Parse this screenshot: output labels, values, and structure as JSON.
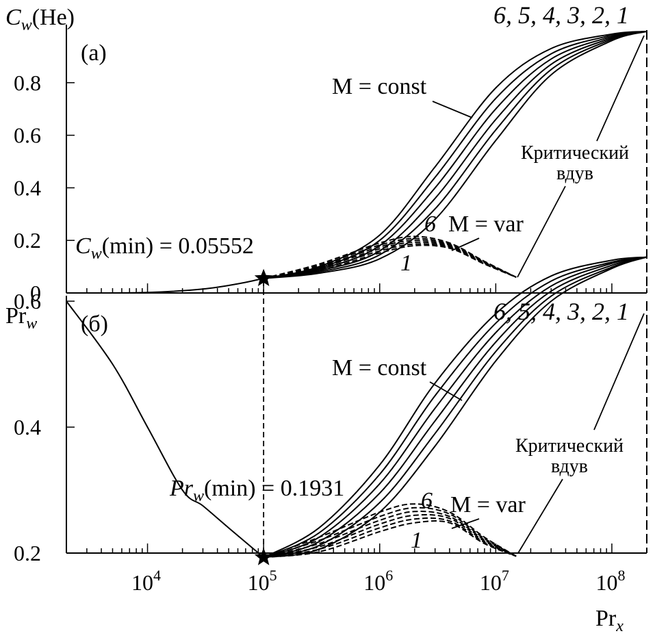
{
  "chart_data": [
    {
      "panel_label": "(a)",
      "type": "line",
      "ylabel_main": "C",
      "ylabel_sub": "w",
      "ylabel_suffix": "(He)",
      "xscale": "log",
      "xlim": [
        2000,
        200000000
      ],
      "ylim": [
        0,
        1.0
      ],
      "yticks": [
        "0",
        "0.2",
        "0.4",
        "0.6",
        "0.8"
      ],
      "ytick_values": [
        0,
        0.2,
        0.4,
        0.6,
        0.8
      ],
      "curve_order_label": "6, 5, 4, 3, 2, 1",
      "const_label": "M = const",
      "var_label": "M = var",
      "var_top_label": "6",
      "var_bottom_label": "1",
      "critical_label_line1": "Критический",
      "critical_label_line2": "вдув",
      "min_label_main": "C",
      "min_label_sub": "w",
      "min_label_suffix": "(min) = 0.05552",
      "min_point": {
        "x": 100000,
        "y": 0.05552
      },
      "base_curve": {
        "x": [
          2000,
          10000,
          30000,
          60000,
          100000
        ],
        "y": [
          0.0,
          0.002,
          0.015,
          0.035,
          0.05552
        ]
      },
      "const_series": [
        {
          "name": "6",
          "x": [
            100000,
            300000,
            1000000,
            3000000,
            10000000,
            30000000,
            100000000,
            200000000
          ],
          "y": [
            0.0555,
            0.1,
            0.22,
            0.48,
            0.78,
            0.93,
            0.985,
            0.995
          ]
        },
        {
          "name": "5",
          "x": [
            100000,
            300000,
            1000000,
            3000000,
            10000000,
            30000000,
            100000000,
            200000000
          ],
          "y": [
            0.0555,
            0.095,
            0.2,
            0.44,
            0.74,
            0.91,
            0.98,
            0.995
          ]
        },
        {
          "name": "4",
          "x": [
            100000,
            300000,
            1000000,
            3000000,
            10000000,
            30000000,
            100000000,
            200000000
          ],
          "y": [
            0.0555,
            0.09,
            0.18,
            0.4,
            0.7,
            0.89,
            0.975,
            0.995
          ]
        },
        {
          "name": "3",
          "x": [
            100000,
            300000,
            1000000,
            3000000,
            10000000,
            30000000,
            100000000,
            200000000
          ],
          "y": [
            0.0555,
            0.085,
            0.16,
            0.36,
            0.66,
            0.87,
            0.97,
            0.995
          ]
        },
        {
          "name": "2",
          "x": [
            100000,
            300000,
            1000000,
            3000000,
            10000000,
            30000000,
            100000000,
            200000000
          ],
          "y": [
            0.0555,
            0.08,
            0.145,
            0.32,
            0.62,
            0.85,
            0.965,
            0.995
          ]
        },
        {
          "name": "1",
          "x": [
            100000,
            300000,
            1000000,
            3000000,
            10000000,
            30000000,
            100000000,
            200000000
          ],
          "y": [
            0.0555,
            0.075,
            0.13,
            0.28,
            0.58,
            0.83,
            0.96,
            0.995
          ]
        }
      ],
      "var_series": [
        {
          "name": "6",
          "x": [
            100000,
            300000,
            1000000,
            2000000,
            4000000,
            8000000,
            15000000
          ],
          "y": [
            0.0555,
            0.11,
            0.19,
            0.215,
            0.19,
            0.12,
            0.06
          ]
        },
        {
          "name": "5",
          "x": [
            100000,
            300000,
            1000000,
            2000000,
            4000000,
            8000000,
            15000000
          ],
          "y": [
            0.0555,
            0.105,
            0.182,
            0.207,
            0.186,
            0.118,
            0.06
          ]
        },
        {
          "name": "4",
          "x": [
            100000,
            300000,
            1000000,
            2000000,
            4000000,
            8000000,
            15000000
          ],
          "y": [
            0.0555,
            0.1,
            0.175,
            0.2,
            0.182,
            0.116,
            0.06
          ]
        },
        {
          "name": "3",
          "x": [
            100000,
            300000,
            1000000,
            2000000,
            4000000,
            8000000,
            15000000
          ],
          "y": [
            0.0555,
            0.095,
            0.168,
            0.193,
            0.178,
            0.114,
            0.06
          ]
        },
        {
          "name": "2",
          "x": [
            100000,
            300000,
            1000000,
            2000000,
            4000000,
            8000000,
            15000000
          ],
          "y": [
            0.0555,
            0.09,
            0.16,
            0.186,
            0.174,
            0.112,
            0.06
          ]
        },
        {
          "name": "1",
          "x": [
            100000,
            300000,
            1000000,
            2000000,
            4000000,
            8000000,
            15000000
          ],
          "y": [
            0.0555,
            0.085,
            0.152,
            0.18,
            0.17,
            0.11,
            0.06
          ]
        }
      ]
    },
    {
      "panel_label": "(б)",
      "type": "line",
      "ylabel_main": "Pr",
      "ylabel_sub": "w",
      "ylabel_suffix": "",
      "xscale": "log",
      "xlim": [
        2000,
        200000000
      ],
      "ylim": [
        0.2,
        0.6
      ],
      "yticks": [
        "0.2",
        "0.4",
        "0.6"
      ],
      "ytick_values": [
        0.2,
        0.4,
        0.6
      ],
      "xtick_exponents": [
        "4",
        "5",
        "6",
        "7",
        "8"
      ],
      "xtick_values": [
        10000,
        100000,
        1000000,
        10000000,
        100000000
      ],
      "xtick_base": "10",
      "xlabel_main": "Pr",
      "xlabel_sub": "x",
      "curve_order_label": "6, 5, 4, 3, 2, 1",
      "const_label": "M = const",
      "var_label": "M = var",
      "var_top_label": "6",
      "var_bottom_label": "1",
      "critical_label_line1": "Критический",
      "critical_label_line2": "вдув",
      "min_label_main": "Pr",
      "min_label_sub": "w",
      "min_label_suffix": "(min) = 0.1931",
      "min_point": {
        "x": 100000,
        "y": 0.1931
      },
      "base_curve": {
        "x": [
          2000,
          5000,
          10000,
          20000,
          30000,
          50000,
          100000
        ],
        "y": [
          0.6,
          0.5,
          0.4,
          0.3,
          0.275,
          0.24,
          0.1931
        ]
      },
      "const_series": [
        {
          "name": "6",
          "x": [
            100000,
            300000,
            1000000,
            3000000,
            10000000,
            30000000,
            100000000,
            200000000
          ],
          "y": [
            0.1931,
            0.24,
            0.34,
            0.47,
            0.58,
            0.64,
            0.665,
            0.67
          ]
        },
        {
          "name": "5",
          "x": [
            100000,
            300000,
            1000000,
            3000000,
            10000000,
            30000000,
            100000000,
            200000000
          ],
          "y": [
            0.1931,
            0.232,
            0.325,
            0.45,
            0.565,
            0.632,
            0.662,
            0.67
          ]
        },
        {
          "name": "4",
          "x": [
            100000,
            300000,
            1000000,
            3000000,
            10000000,
            30000000,
            100000000,
            200000000
          ],
          "y": [
            0.1931,
            0.225,
            0.31,
            0.43,
            0.55,
            0.624,
            0.66,
            0.67
          ]
        },
        {
          "name": "3",
          "x": [
            100000,
            300000,
            1000000,
            3000000,
            10000000,
            30000000,
            100000000,
            200000000
          ],
          "y": [
            0.1931,
            0.218,
            0.295,
            0.41,
            0.535,
            0.616,
            0.657,
            0.67
          ]
        },
        {
          "name": "2",
          "x": [
            100000,
            300000,
            1000000,
            3000000,
            10000000,
            30000000,
            100000000,
            200000000
          ],
          "y": [
            0.1931,
            0.212,
            0.28,
            0.39,
            0.52,
            0.608,
            0.654,
            0.67
          ]
        },
        {
          "name": "1",
          "x": [
            100000,
            300000,
            1000000,
            3000000,
            10000000,
            30000000,
            100000000,
            200000000
          ],
          "y": [
            0.1931,
            0.206,
            0.265,
            0.37,
            0.505,
            0.6,
            0.652,
            0.67
          ]
        }
      ],
      "var_series": [
        {
          "name": "6",
          "x": [
            100000,
            300000,
            1000000,
            2000000,
            4000000,
            8000000,
            15000000
          ],
          "y": [
            0.1931,
            0.225,
            0.265,
            0.278,
            0.265,
            0.225,
            0.195
          ]
        },
        {
          "name": "5",
          "x": [
            100000,
            300000,
            1000000,
            2000000,
            4000000,
            8000000,
            15000000
          ],
          "y": [
            0.1931,
            0.22,
            0.258,
            0.272,
            0.262,
            0.223,
            0.195
          ]
        },
        {
          "name": "4",
          "x": [
            100000,
            300000,
            1000000,
            2000000,
            4000000,
            8000000,
            15000000
          ],
          "y": [
            0.1931,
            0.215,
            0.252,
            0.266,
            0.258,
            0.221,
            0.195
          ]
        },
        {
          "name": "3",
          "x": [
            100000,
            300000,
            1000000,
            2000000,
            4000000,
            8000000,
            15000000
          ],
          "y": [
            0.1931,
            0.21,
            0.246,
            0.26,
            0.255,
            0.219,
            0.195
          ]
        },
        {
          "name": "2",
          "x": [
            100000,
            300000,
            1000000,
            2000000,
            4000000,
            8000000,
            15000000
          ],
          "y": [
            0.1931,
            0.206,
            0.24,
            0.254,
            0.251,
            0.217,
            0.195
          ]
        },
        {
          "name": "1",
          "x": [
            100000,
            300000,
            1000000,
            2000000,
            4000000,
            8000000,
            15000000
          ],
          "y": [
            0.1931,
            0.202,
            0.234,
            0.248,
            0.248,
            0.215,
            0.195
          ]
        }
      ]
    }
  ]
}
